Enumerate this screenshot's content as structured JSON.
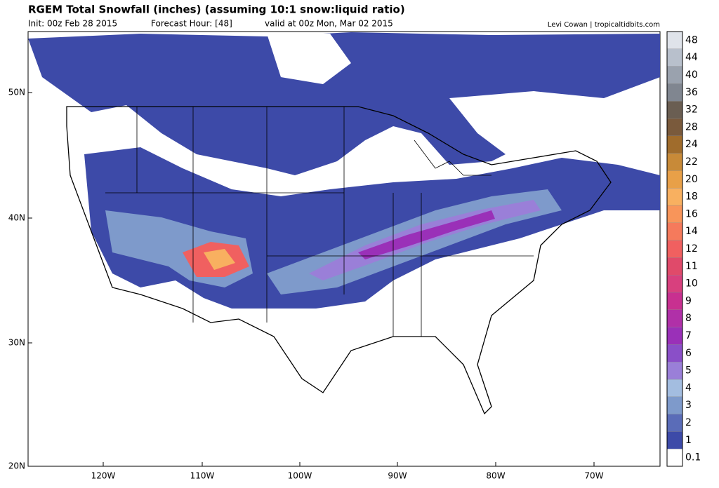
{
  "header": {
    "title": "RGEM Total Snowfall (inches) (assuming 10:1 snow:liquid ratio)",
    "init": "Init: 00z Feb 28 2015",
    "forecast_hour": "Forecast Hour: [48]",
    "valid": "valid at 00z Mon, Mar 02 2015",
    "credit": "Levi Cowan | tropicaltidbits.com"
  },
  "map": {
    "lat_labels": [
      "50N",
      "40N",
      "30N",
      "20N"
    ],
    "lon_labels": [
      "120W",
      "110W",
      "100W",
      "90W",
      "80W",
      "70W"
    ]
  },
  "colorbar": {
    "levels": [
      {
        "label": "0.1",
        "color": "#ffffff"
      },
      {
        "label": "1",
        "color": "#3d4aa8"
      },
      {
        "label": "2",
        "color": "#5a6cb8"
      },
      {
        "label": "3",
        "color": "#7e9acb"
      },
      {
        "label": "4",
        "color": "#a3bde0"
      },
      {
        "label": "5",
        "color": "#9a7fd8"
      },
      {
        "label": "6",
        "color": "#8a4fc8"
      },
      {
        "label": "7",
        "color": "#9a30b8"
      },
      {
        "label": "8",
        "color": "#b030a8"
      },
      {
        "label": "9",
        "color": "#c83090"
      },
      {
        "label": "10",
        "color": "#d8407e"
      },
      {
        "label": "11",
        "color": "#e04a6a"
      },
      {
        "label": "12",
        "color": "#f06060"
      },
      {
        "label": "14",
        "color": "#f57a5c"
      },
      {
        "label": "16",
        "color": "#f8955a"
      },
      {
        "label": "18",
        "color": "#f8b060"
      },
      {
        "label": "20",
        "color": "#e8a048"
      },
      {
        "label": "22",
        "color": "#c88a38"
      },
      {
        "label": "24",
        "color": "#a06c2c"
      },
      {
        "label": "28",
        "color": "#7a5a3c"
      },
      {
        "label": "32",
        "color": "#6a5e52"
      },
      {
        "label": "36",
        "color": "#808690"
      },
      {
        "label": "40",
        "color": "#9aa2ae"
      },
      {
        "label": "44",
        "color": "#b8c0cc"
      },
      {
        "label": "48",
        "color": "#dfe3ea"
      }
    ]
  }
}
